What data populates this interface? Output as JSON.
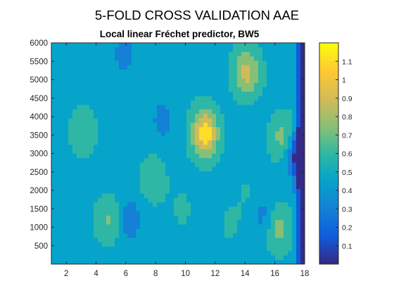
{
  "figure": {
    "title": "5-FOLD CROSS VALIDATION AAE",
    "subtitle": "Local linear Fréchet predictor, BW5"
  },
  "chart_data": {
    "type": "heatmap",
    "style": "filled-contour",
    "title": "5-FOLD CROSS VALIDATION AAE",
    "subtitle": "Local linear Fréchet predictor, BW5",
    "xlabel": "",
    "ylabel": "",
    "xlim": [
      1,
      18
    ],
    "ylim": [
      0,
      6000
    ],
    "x_ticks": [
      2,
      4,
      6,
      8,
      10,
      12,
      14,
      16,
      18
    ],
    "y_ticks": [
      500,
      1000,
      1500,
      2000,
      2500,
      3000,
      3500,
      4000,
      4500,
      5000,
      5500,
      6000
    ],
    "colorbar": {
      "ticks": [
        0.1,
        0.2,
        0.3,
        0.4,
        0.5,
        0.6,
        0.7,
        0.8,
        0.9,
        1,
        1.1
      ],
      "range": [
        0,
        1.2
      ],
      "colormap": "parula"
    },
    "contour_levels": [
      0.0,
      0.15,
      0.3,
      0.45,
      0.6,
      0.75,
      0.9,
      1.05
    ],
    "level_colors": [
      "#352a87",
      "#0f5cdd",
      "#1481d6",
      "#06a4ca",
      "#2eb7a4",
      "#87bf77",
      "#d1bb59",
      "#fedc2a"
    ],
    "peaks": [
      {
        "x": 11.3,
        "y": 3550,
        "value": 1.15
      },
      {
        "x": 14.1,
        "y": 5200,
        "value": 0.95
      },
      {
        "x": 16.2,
        "y": 1000,
        "value": 0.85
      },
      {
        "x": 16.6,
        "y": 3400,
        "value": 0.85
      },
      {
        "x": 3.1,
        "y": 3600,
        "value": 0.72
      },
      {
        "x": 7.8,
        "y": 2300,
        "value": 0.72
      },
      {
        "x": 4.9,
        "y": 1200,
        "value": 0.78
      },
      {
        "x": 9.8,
        "y": 1500,
        "value": 0.62
      },
      {
        "x": 14.3,
        "y": 1900,
        "value": 0.62
      },
      {
        "x": 13.0,
        "y": 1100,
        "value": 0.62
      }
    ],
    "troughs": [
      {
        "x": 17.6,
        "y": 3000,
        "value": 0.05
      },
      {
        "x": 8.5,
        "y": 3900,
        "value": 0.4
      },
      {
        "x": 5.9,
        "y": 5700,
        "value": 0.4
      },
      {
        "x": 6.2,
        "y": 1200,
        "value": 0.35
      },
      {
        "x": 15.3,
        "y": 1300,
        "value": 0.35
      }
    ]
  }
}
